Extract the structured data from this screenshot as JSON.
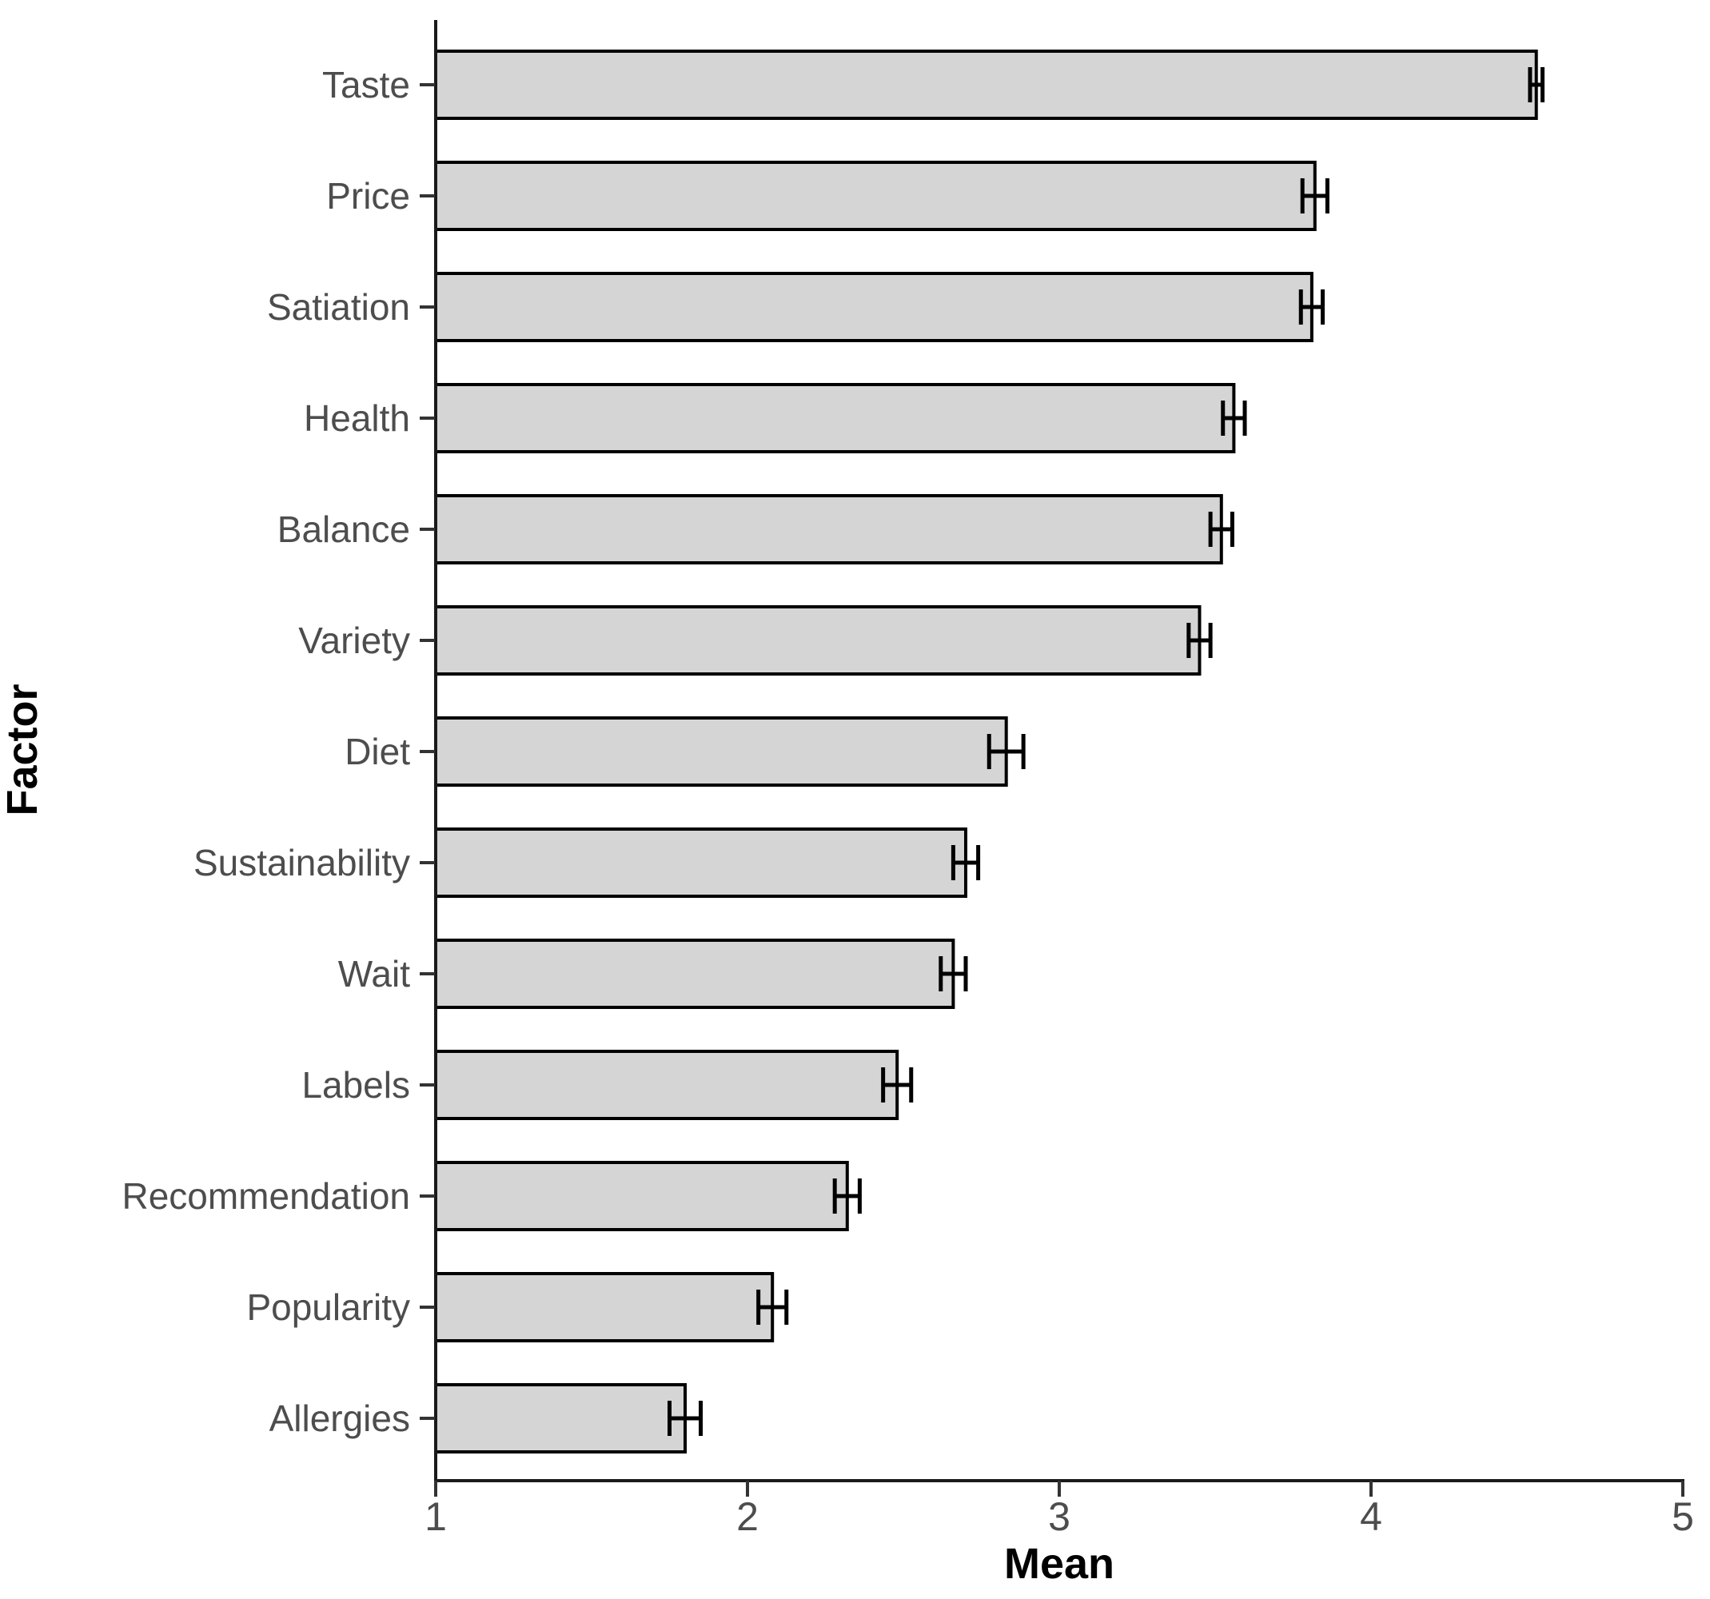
{
  "chart_data": {
    "type": "bar",
    "orientation": "horizontal",
    "title": "",
    "xlabel": "Mean",
    "ylabel": "Factor",
    "categories": [
      "Taste",
      "Price",
      "Satiation",
      "Health",
      "Balance",
      "Variety",
      "Diet",
      "Sustainability",
      "Wait",
      "Labels",
      "Recommendation",
      "Popularity",
      "Allergies"
    ],
    "values": [
      4.53,
      3.82,
      3.81,
      3.56,
      3.52,
      3.45,
      2.83,
      2.7,
      2.66,
      2.48,
      2.32,
      2.08,
      1.8
    ],
    "errors": [
      0.02,
      0.04,
      0.035,
      0.035,
      0.035,
      0.035,
      0.055,
      0.04,
      0.04,
      0.045,
      0.04,
      0.045,
      0.05
    ],
    "error_type": "se",
    "xlim": [
      1,
      5
    ],
    "xticks": [
      "1",
      "2",
      "3",
      "4",
      "5"
    ],
    "grid": "off",
    "legend": "none",
    "style": {
      "background": "#ffffff",
      "bar_fill": "#d5d5d5",
      "bar_stroke": "#000000",
      "error_color": "#000000",
      "axis_line_color": "#1a1a1a",
      "tick_color": "#333333",
      "tick_label_color": "#4d4d4d",
      "axis_title_color": "#000000"
    }
  }
}
